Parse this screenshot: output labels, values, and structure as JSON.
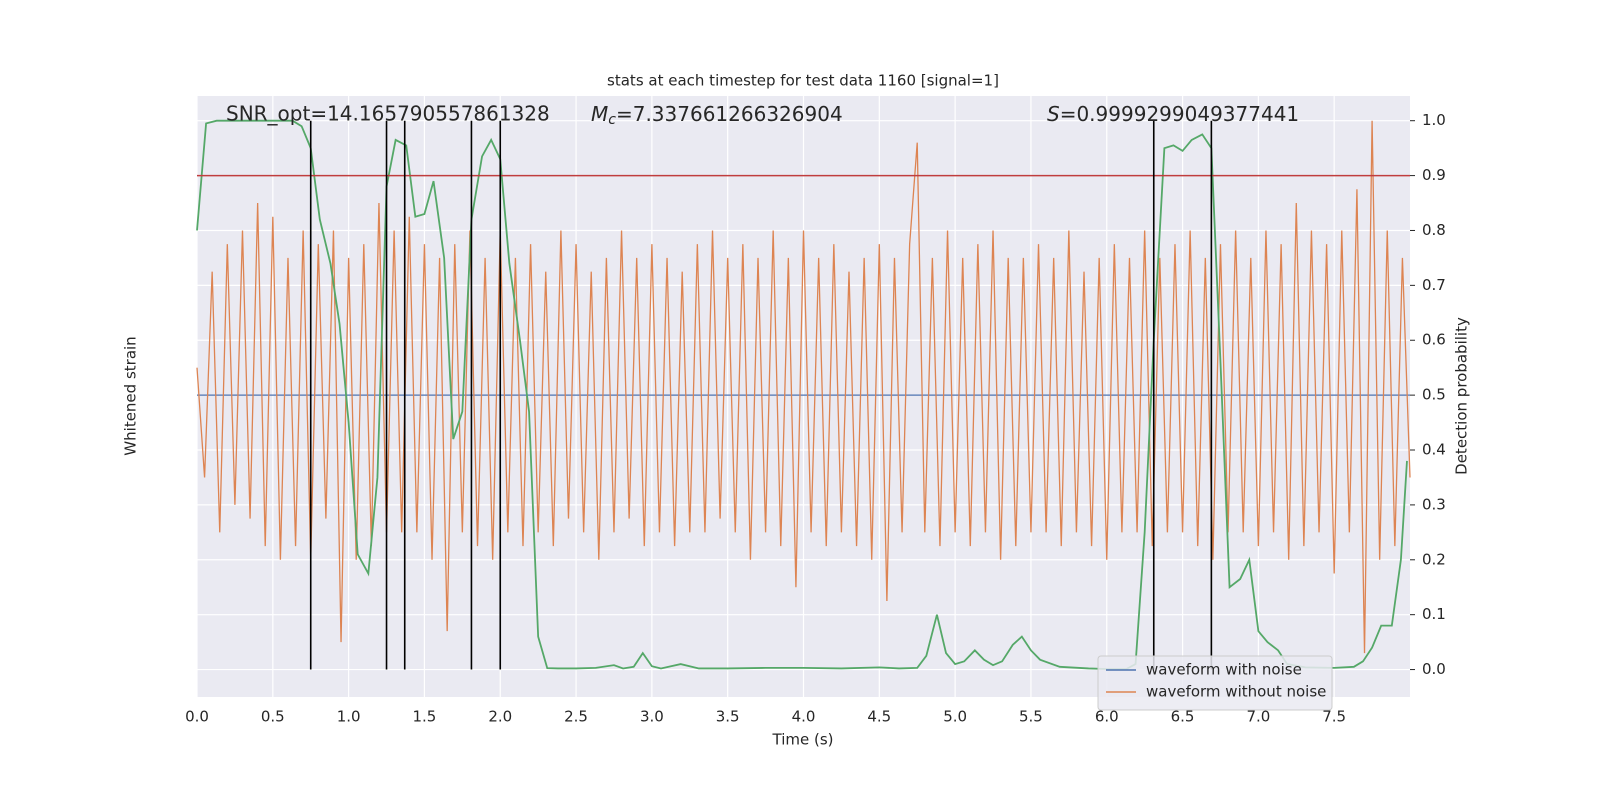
{
  "chart_data": {
    "type": "line",
    "title": "stats at each timestep for test data 1160 [signal=1]",
    "x_label": "Time (s)",
    "y_label": "Whitened strain",
    "y2_label": "Detection probability",
    "annotations": {
      "snr": "SNR_opt=14.165790557861328",
      "mc_symbol": "M",
      "mc_subscript": "c",
      "mc_text": "=7.337661266326904",
      "s_symbol": "S",
      "s_text": "=0.9999299049377441"
    },
    "xlim": [
      0,
      8
    ],
    "xticks": [
      {
        "value": 0,
        "label": "0.0"
      },
      {
        "value": 0.5,
        "label": "0.5"
      },
      {
        "value": 1,
        "label": "1.0"
      },
      {
        "value": 1.5,
        "label": "1.5"
      },
      {
        "value": 2,
        "label": "2.0"
      },
      {
        "value": 2.5,
        "label": "2.5"
      },
      {
        "value": 3,
        "label": "3.0"
      },
      {
        "value": 3.5,
        "label": "3.5"
      },
      {
        "value": 4,
        "label": "4.0"
      },
      {
        "value": 4.5,
        "label": "4.5"
      },
      {
        "value": 5,
        "label": "5.0"
      },
      {
        "value": 5.5,
        "label": "5.5"
      },
      {
        "value": 6,
        "label": "6.0"
      },
      {
        "value": 6.5,
        "label": "6.5"
      },
      {
        "value": 7,
        "label": "7.0"
      },
      {
        "value": 7.5,
        "label": "7.5"
      }
    ],
    "ylim": [
      -1.1,
      1.09
    ],
    "y2lim": [
      -0.05,
      1.045
    ],
    "y2ticks": [
      {
        "value": 0,
        "label": "0.0"
      },
      {
        "value": 0.1,
        "label": "0.1"
      },
      {
        "value": 0.2,
        "label": "0.2"
      },
      {
        "value": 0.3,
        "label": "0.3"
      },
      {
        "value": 0.4,
        "label": "0.4"
      },
      {
        "value": 0.5,
        "label": "0.5"
      },
      {
        "value": 0.6,
        "label": "0.6"
      },
      {
        "value": 0.7,
        "label": "0.7"
      },
      {
        "value": 0.8,
        "label": "0.8"
      },
      {
        "value": 0.9,
        "label": "0.9"
      },
      {
        "value": 1,
        "label": "1.0"
      }
    ],
    "grid": true,
    "legend": "lower right",
    "x": [
      0,
      0.05,
      0.1,
      0.15,
      0.2,
      0.25,
      0.3,
      0.35,
      0.4,
      0.45,
      0.5,
      0.55,
      0.6,
      0.65,
      0.7,
      0.75,
      0.8,
      0.85,
      0.9,
      0.95,
      1,
      1.05,
      1.1,
      1.15,
      1.2,
      1.25,
      1.3,
      1.35,
      1.4,
      1.45,
      1.5,
      1.55,
      1.6,
      1.65,
      1.7,
      1.75,
      1.8,
      1.85,
      1.9,
      1.95,
      2,
      2.05,
      2.1,
      2.15,
      2.2,
      2.25,
      2.3,
      2.35,
      2.4,
      2.45,
      2.5,
      2.55,
      2.6,
      2.65,
      2.7,
      2.75,
      2.8,
      2.85,
      2.9,
      2.95,
      3,
      3.05,
      3.1,
      3.15,
      3.2,
      3.25,
      3.3,
      3.35,
      3.4,
      3.45,
      3.5,
      3.55,
      3.6,
      3.65,
      3.7,
      3.75,
      3.8,
      3.85,
      3.9,
      3.95,
      4,
      4.05,
      4.1,
      4.15,
      4.2,
      4.25,
      4.3,
      4.35,
      4.4,
      4.45,
      4.5,
      4.55,
      4.6,
      4.65,
      4.7,
      4.75,
      4.8,
      4.85,
      4.9,
      4.95,
      5,
      5.05,
      5.1,
      5.15,
      5.2,
      5.25,
      5.3,
      5.35,
      5.4,
      5.45,
      5.5,
      5.55,
      5.6,
      5.65,
      5.7,
      5.75,
      5.8,
      5.85,
      5.9,
      5.95,
      6,
      6.05,
      6.1,
      6.15,
      6.2,
      6.25,
      6.3,
      6.35,
      6.4,
      6.45,
      6.5,
      6.55,
      6.6,
      6.65,
      6.7,
      6.75,
      6.8,
      6.85,
      6.9,
      6.95,
      7,
      7.05,
      7.1,
      7.15,
      7.2,
      7.25,
      7.3,
      7.35,
      7.4,
      7.45,
      7.5,
      7.55,
      7.6,
      7.65,
      7.7,
      7.75,
      7.8,
      7.85,
      7.9,
      7.95,
      8
    ],
    "series": [
      {
        "name": "waveform with noise",
        "color": "#4c72b0",
        "values": [
          0,
          0,
          0,
          0,
          0,
          0,
          0,
          0,
          0,
          0,
          0,
          0,
          0,
          0,
          0,
          0,
          0,
          0,
          0,
          0,
          0,
          0,
          0,
          0,
          0,
          0,
          0,
          0,
          0,
          0,
          0,
          0,
          0,
          0,
          0,
          0,
          0,
          0,
          0,
          0,
          0,
          0,
          0,
          0,
          0,
          0,
          0,
          0,
          0,
          0,
          0,
          0,
          0,
          0,
          0,
          0,
          0,
          0,
          0,
          0,
          0,
          0,
          0,
          0,
          0,
          0,
          0,
          0,
          0,
          0,
          0,
          0,
          0,
          0,
          0,
          0,
          0,
          0,
          0,
          0,
          0,
          0,
          0,
          0,
          0,
          0,
          0,
          0,
          0,
          0,
          0,
          0,
          0,
          0,
          0,
          0,
          0,
          0,
          0,
          0,
          0,
          0,
          0,
          0,
          0,
          0,
          0,
          0,
          0,
          0,
          0,
          0,
          0,
          0,
          0,
          0,
          0,
          0,
          0,
          0,
          0,
          0,
          0,
          0,
          0,
          0,
          0,
          0,
          0,
          0,
          0,
          0,
          0,
          0,
          0,
          0,
          0,
          0,
          0,
          0,
          0,
          0,
          0,
          0,
          0,
          0,
          0,
          0,
          0,
          0,
          0,
          0,
          0,
          0,
          0,
          0,
          0,
          0,
          0,
          0,
          0
        ]
      },
      {
        "name": "waveform without noise",
        "color": "#dd8452",
        "values": [
          0.1,
          -0.3,
          0.45,
          -0.5,
          0.55,
          -0.4,
          0.6,
          -0.45,
          0.7,
          -0.55,
          0.65,
          -0.6,
          0.5,
          -0.55,
          0.6,
          -0.6,
          0.55,
          -0.45,
          0.6,
          -0.9,
          0.5,
          -0.6,
          0.55,
          -0.55,
          0.7,
          -0.5,
          0.6,
          -0.5,
          0.65,
          -0.5,
          0.55,
          -0.6,
          0.5,
          -0.86,
          0.55,
          -0.5,
          0.6,
          -0.55,
          0.5,
          -0.6,
          0.6,
          -0.5,
          0.5,
          -0.55,
          0.55,
          -0.5,
          0.45,
          -0.55,
          0.6,
          -0.45,
          0.55,
          -0.5,
          0.45,
          -0.6,
          0.5,
          -0.5,
          0.6,
          -0.45,
          0.5,
          -0.55,
          0.55,
          -0.5,
          0.5,
          -0.55,
          0.45,
          -0.5,
          0.55,
          -0.5,
          0.6,
          -0.45,
          0.5,
          -0.5,
          0.55,
          -0.6,
          0.5,
          -0.5,
          0.6,
          -0.55,
          0.5,
          -0.7,
          0.6,
          -0.5,
          0.5,
          -0.55,
          0.55,
          -0.5,
          0.45,
          -0.55,
          0.5,
          -0.6,
          0.55,
          -0.75,
          0.5,
          -0.5,
          0.55,
          0.92,
          -0.5,
          0.5,
          -0.55,
          0.6,
          -0.5,
          0.5,
          -0.55,
          0.55,
          -0.5,
          0.6,
          -0.6,
          0.5,
          -0.55,
          0.5,
          -0.5,
          0.55,
          -0.5,
          0.5,
          -0.55,
          0.6,
          -0.5,
          0.45,
          -0.55,
          0.5,
          -0.6,
          0.55,
          -0.5,
          0.5,
          -0.5,
          0.6,
          -0.55,
          0.5,
          -0.5,
          0.55,
          -0.5,
          0.6,
          -0.55,
          0.5,
          -0.6,
          0.55,
          -0.5,
          0.6,
          -0.5,
          0.5,
          -0.55,
          0.6,
          -0.5,
          0.55,
          -0.6,
          0.7,
          -0.55,
          0.6,
          -0.5,
          0.55,
          -0.65,
          0.6,
          -0.5,
          0.75,
          -0.94,
          1.0,
          -0.6,
          0.6,
          -0.55,
          0.5,
          -0.3
        ]
      },
      {
        "color": "#55a868",
        "axis": "y2",
        "x": [
          0,
          0.06,
          0.13,
          0.19,
          0.25,
          0.31,
          0.38,
          0.44,
          0.5,
          0.56,
          0.63,
          0.69,
          0.75,
          0.81,
          0.88,
          0.94,
          1.0,
          1.06,
          1.13,
          1.19,
          1.25,
          1.31,
          1.38,
          1.44,
          1.5,
          1.56,
          1.63,
          1.69,
          1.75,
          1.81,
          1.88,
          1.94,
          2.0,
          2.06,
          2.13,
          2.19,
          2.25,
          2.31,
          2.38,
          2.5,
          2.63,
          2.75,
          2.81,
          2.88,
          2.94,
          3.0,
          3.06,
          3.19,
          3.31,
          3.5,
          3.75,
          4.0,
          4.25,
          4.5,
          4.63,
          4.75,
          4.81,
          4.88,
          4.94,
          5.0,
          5.06,
          5.13,
          5.19,
          5.25,
          5.31,
          5.38,
          5.44,
          5.5,
          5.56,
          5.69,
          5.88,
          6.0,
          6.13,
          6.19,
          6.25,
          6.31,
          6.38,
          6.44,
          6.5,
          6.56,
          6.63,
          6.69,
          6.75,
          6.81,
          6.88,
          6.94,
          7.0,
          7.06,
          7.13,
          7.19,
          7.31,
          7.5,
          7.63,
          7.69,
          7.75,
          7.81,
          7.88,
          7.94,
          7.98
        ],
        "values": [
          0.8,
          0.995,
          1.0,
          1.0,
          1.0,
          1.0,
          1.0,
          1.0,
          1.0,
          1.0,
          1.0,
          0.99,
          0.95,
          0.82,
          0.74,
          0.63,
          0.45,
          0.21,
          0.175,
          0.35,
          0.88,
          0.965,
          0.955,
          0.825,
          0.83,
          0.89,
          0.75,
          0.42,
          0.47,
          0.82,
          0.935,
          0.965,
          0.93,
          0.74,
          0.6,
          0.47,
          0.06,
          0.0025,
          0.002,
          0.002,
          0.003,
          0.008,
          0.002,
          0.005,
          0.03,
          0.006,
          0.002,
          0.01,
          0.002,
          0.002,
          0.003,
          0.003,
          0.002,
          0.004,
          0.002,
          0.003,
          0.025,
          0.1,
          0.03,
          0.01,
          0.015,
          0.035,
          0.018,
          0.008,
          0.015,
          0.045,
          0.06,
          0.035,
          0.018,
          0.005,
          0.002,
          0.001,
          0.001,
          0.01,
          0.25,
          0.6,
          0.95,
          0.955,
          0.945,
          0.965,
          0.975,
          0.95,
          0.56,
          0.15,
          0.165,
          0.2,
          0.07,
          0.05,
          0.035,
          0.01,
          0.004,
          0.003,
          0.005,
          0.015,
          0.04,
          0.08,
          0.08,
          0.2,
          0.38
        ]
      }
    ],
    "hline": 0.9,
    "hline_color": "#c03d3e",
    "vlines": [
      0.75,
      1.25,
      1.37,
      1.81,
      2.0,
      6.31,
      6.69
    ],
    "vline_color": "#000000"
  }
}
